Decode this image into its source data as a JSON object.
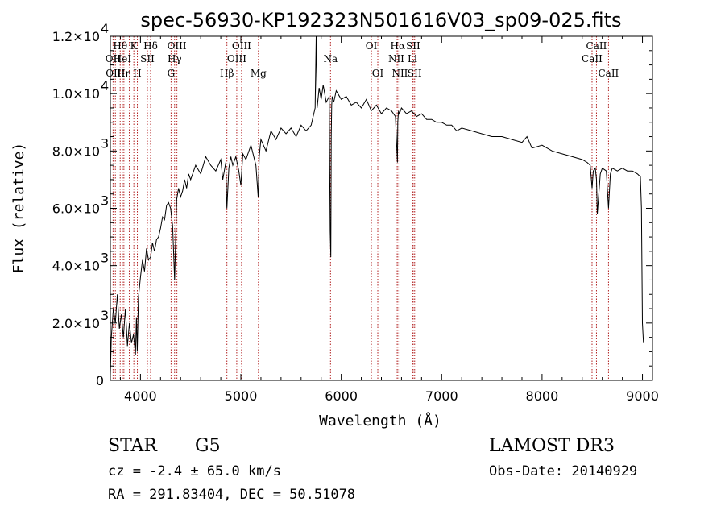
{
  "chart_data": {
    "type": "line",
    "title": "spec-56930-KP192323N501616V03_sp09-025.fits",
    "xlabel": "Wavelength (Å)",
    "ylabel": "Flux (relative)",
    "xlim": [
      3700,
      9100
    ],
    "ylim": [
      0,
      12000
    ],
    "x_ticks": [
      4000,
      5000,
      6000,
      7000,
      8000,
      9000
    ],
    "x_tick_labels": [
      "4000",
      "5000",
      "6000",
      "7000",
      "8000",
      "9000"
    ],
    "y_ticks": [
      0,
      2000,
      4000,
      6000,
      8000,
      10000,
      12000
    ],
    "y_tick_labels": [
      {
        "mantissa": "0",
        "exp": ""
      },
      {
        "mantissa": "2.0×10",
        "exp": "3"
      },
      {
        "mantissa": "4.0×10",
        "exp": "3"
      },
      {
        "mantissa": "6.0×10",
        "exp": "3"
      },
      {
        "mantissa": "8.0×10",
        "exp": "3"
      },
      {
        "mantissa": "1.0×10",
        "exp": "4"
      },
      {
        "mantissa": "1.2×10",
        "exp": "4"
      }
    ],
    "series": [
      {
        "x": [
          3700,
          3710,
          3730,
          3750,
          3770,
          3790,
          3810,
          3830,
          3850,
          3870,
          3890,
          3910,
          3930,
          3950,
          3960,
          3968,
          3980,
          4000,
          4020,
          4040,
          4060,
          4080,
          4101,
          4120,
          4140,
          4160,
          4180,
          4200,
          4220,
          4240,
          4260,
          4280,
          4300,
          4320,
          4340,
          4360,
          4380,
          4400,
          4420,
          4440,
          4460,
          4480,
          4500,
          4550,
          4600,
          4650,
          4700,
          4750,
          4800,
          4820,
          4850,
          4861,
          4880,
          4900,
          4920,
          4950,
          4980,
          5000,
          5020,
          5050,
          5100,
          5150,
          5172,
          5183,
          5200,
          5250,
          5300,
          5350,
          5400,
          5450,
          5500,
          5550,
          5600,
          5650,
          5700,
          5740,
          5750,
          5760,
          5780,
          5800,
          5820,
          5850,
          5880,
          5890,
          5896,
          5900,
          5905,
          5910,
          5925,
          5950,
          6000,
          6050,
          6100,
          6150,
          6200,
          6250,
          6300,
          6350,
          6400,
          6450,
          6500,
          6540,
          6560,
          6563,
          6570,
          6580,
          6600,
          6650,
          6700,
          6750,
          6800,
          6850,
          6900,
          6950,
          7000,
          7050,
          7100,
          7150,
          7200,
          7300,
          7400,
          7500,
          7600,
          7700,
          7800,
          7850,
          7900,
          8000,
          8100,
          8200,
          8300,
          8400,
          8450,
          8480,
          8498,
          8510,
          8530,
          8542,
          8550,
          8580,
          8600,
          8640,
          8662,
          8680,
          8700,
          8750,
          8800,
          8850,
          8900,
          8950,
          8980,
          8990,
          9000,
          9010
        ],
        "y": [
          200,
          1500,
          2500,
          2000,
          3000,
          1800,
          2300,
          1500,
          2500,
          1200,
          2000,
          1300,
          1600,
          900,
          2200,
          1000,
          2900,
          3600,
          4200,
          3800,
          4600,
          4200,
          4300,
          4800,
          4500,
          4900,
          5000,
          5300,
          5700,
          5600,
          6100,
          6200,
          6000,
          5400,
          3500,
          6300,
          6700,
          6400,
          6600,
          7000,
          6700,
          7200,
          7000,
          7500,
          7200,
          7800,
          7500,
          7300,
          7700,
          7000,
          7600,
          6000,
          7400,
          7800,
          7500,
          7800,
          7300,
          6800,
          7900,
          7700,
          8200,
          7500,
          6400,
          7800,
          8400,
          8000,
          8700,
          8400,
          8800,
          8600,
          8800,
          8500,
          8900,
          8700,
          8900,
          9500,
          12000,
          9500,
          10200,
          9800,
          10300,
          9700,
          9900,
          5200,
          4300,
          8500,
          9600,
          9900,
          9700,
          10100,
          9800,
          9900,
          9600,
          9700,
          9500,
          9800,
          9400,
          9600,
          9300,
          9500,
          9400,
          9200,
          7600,
          9000,
          9400,
          9300,
          9500,
          9300,
          9400,
          9200,
          9300,
          9100,
          9100,
          9000,
          9000,
          8900,
          8900,
          8700,
          8800,
          8700,
          8600,
          8500,
          8500,
          8400,
          8300,
          8500,
          8100,
          8200,
          8000,
          7900,
          7800,
          7700,
          7600,
          7500,
          6700,
          7300,
          7400,
          7000,
          5800,
          7200,
          7400,
          7300,
          6000,
          7200,
          7400,
          7300,
          7400,
          7300,
          7300,
          7200,
          7100,
          6000,
          2000,
          1300
        ]
      }
    ],
    "line_labels": [
      {
        "label": "Hθ",
        "x": 3798,
        "row": 1
      },
      {
        "label": "K",
        "x": 3934,
        "row": 1
      },
      {
        "label": "Hδ",
        "x": 4101,
        "row": 1
      },
      {
        "label": "OII",
        "x": 3727,
        "row": 2
      },
      {
        "label": "HeI",
        "x": 3820,
        "row": 2
      },
      {
        "label": "SII",
        "x": 4069,
        "row": 2
      },
      {
        "label": "OIII",
        "x": 3750,
        "row": 3
      },
      {
        "label": "Hη",
        "x": 3835,
        "row": 3
      },
      {
        "label": "H",
        "x": 3969,
        "row": 3
      },
      {
        "label": "OIII",
        "x": 4363,
        "row": 1
      },
      {
        "label": "Hγ",
        "x": 4340,
        "row": 2
      },
      {
        "label": "G",
        "x": 4305,
        "row": 3
      },
      {
        "label": "OIII",
        "x": 5007,
        "row": 1
      },
      {
        "label": "OIII",
        "x": 4959,
        "row": 2
      },
      {
        "label": "Hβ",
        "x": 4861,
        "row": 3
      },
      {
        "label": "Mg",
        "x": 5175,
        "row": 3
      },
      {
        "label": "Na",
        "x": 5893,
        "row": 2
      },
      {
        "label": "OI",
        "x": 6300,
        "row": 1
      },
      {
        "label": "OI",
        "x": 6364,
        "row": 3
      },
      {
        "label": "Hα",
        "x": 6563,
        "row": 1
      },
      {
        "label": "SII",
        "x": 6716,
        "row": 1
      },
      {
        "label": "NII",
        "x": 6548,
        "row": 2
      },
      {
        "label": "Li",
        "x": 6708,
        "row": 2
      },
      {
        "label": "NII",
        "x": 6584,
        "row": 3
      },
      {
        "label": "SII",
        "x": 6731,
        "row": 3
      },
      {
        "label": "CaII",
        "x": 8542,
        "row": 1
      },
      {
        "label": "CaII",
        "x": 8498,
        "row": 2
      },
      {
        "label": "CaII",
        "x": 8662,
        "row": 3
      }
    ],
    "marker_lines_x": [
      3727,
      3750,
      3798,
      3820,
      3835,
      3889,
      3934,
      3969,
      4069,
      4101,
      4305,
      4340,
      4363,
      4861,
      4959,
      5007,
      5175,
      5893,
      6300,
      6364,
      6548,
      6563,
      6584,
      6708,
      6716,
      6731,
      8498,
      8542,
      8662
    ],
    "colors": {
      "spectrum": "#000000",
      "marker_lines": "#b22222"
    },
    "grid": false
  },
  "info": {
    "object_class": "STAR",
    "subclass": "G5",
    "survey": "LAMOST DR3",
    "cz": "cz = -2.4 ± 65.0 km/s",
    "obs_date": "Obs-Date: 20140929",
    "radec": "RA = 291.83404, DEC =  50.51078"
  }
}
